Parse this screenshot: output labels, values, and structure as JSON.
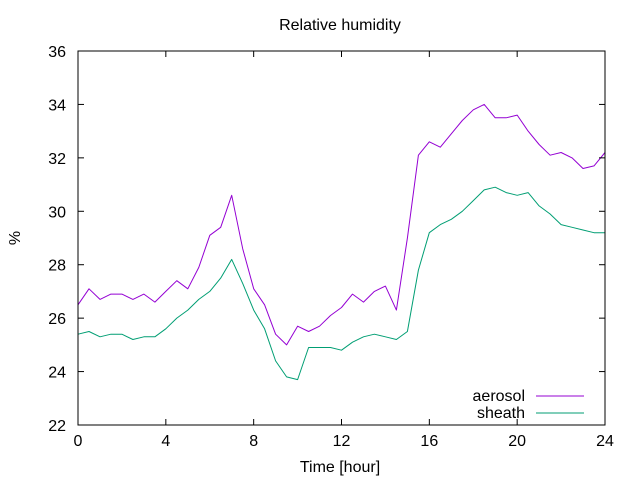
{
  "chart_data": {
    "type": "line",
    "title": "Relative humidity",
    "xlabel": "Time [hour]",
    "ylabel": "%",
    "xlim": [
      0,
      24
    ],
    "ylim": [
      22,
      36
    ],
    "x_ticks": [
      0,
      4,
      8,
      12,
      16,
      20,
      24
    ],
    "y_ticks": [
      22,
      24,
      26,
      28,
      30,
      32,
      34,
      36
    ],
    "grid": false,
    "legend_position": "bottom-right",
    "series": [
      {
        "name": "aerosol",
        "color": "#9400d3",
        "x": [
          0,
          0.5,
          1,
          1.5,
          2,
          2.5,
          3,
          3.5,
          4,
          4.5,
          5,
          5.5,
          6,
          6.5,
          7,
          7.5,
          8,
          8.5,
          9,
          9.5,
          10,
          10.5,
          11,
          11.5,
          12,
          12.5,
          13,
          13.5,
          14,
          14.5,
          15,
          15.5,
          16,
          16.5,
          17,
          17.5,
          18,
          18.5,
          19,
          19.5,
          20,
          20.5,
          21,
          21.5,
          22,
          22.5,
          23,
          23.5,
          24
        ],
        "y": [
          26.5,
          27.1,
          26.7,
          26.9,
          26.9,
          26.7,
          26.9,
          26.6,
          27.0,
          27.4,
          27.1,
          27.9,
          29.1,
          29.4,
          30.6,
          28.6,
          27.1,
          26.5,
          25.4,
          25.0,
          25.7,
          25.5,
          25.7,
          26.1,
          26.4,
          26.9,
          26.6,
          27.0,
          27.2,
          26.3,
          29.0,
          32.1,
          32.6,
          32.4,
          32.9,
          33.4,
          33.8,
          34.0,
          33.5,
          33.5,
          33.6,
          33.0,
          32.5,
          32.1,
          32.2,
          32.0,
          31.6,
          31.7,
          32.2
        ]
      },
      {
        "name": "sheath",
        "color": "#009e73",
        "x": [
          0,
          0.5,
          1,
          1.5,
          2,
          2.5,
          3,
          3.5,
          4,
          4.5,
          5,
          5.5,
          6,
          6.5,
          7,
          7.5,
          8,
          8.5,
          9,
          9.5,
          10,
          10.5,
          11,
          11.5,
          12,
          12.5,
          13,
          13.5,
          14,
          14.5,
          15,
          15.5,
          16,
          16.5,
          17,
          17.5,
          18,
          18.5,
          19,
          19.5,
          20,
          20.5,
          21,
          21.5,
          22,
          22.5,
          23,
          23.5,
          24
        ],
        "y": [
          25.4,
          25.5,
          25.3,
          25.4,
          25.4,
          25.2,
          25.3,
          25.3,
          25.6,
          26.0,
          26.3,
          26.7,
          27.0,
          27.5,
          28.2,
          27.3,
          26.3,
          25.6,
          24.4,
          23.8,
          23.7,
          24.9,
          24.9,
          24.9,
          24.8,
          25.1,
          25.3,
          25.4,
          25.3,
          25.2,
          25.5,
          27.8,
          29.2,
          29.5,
          29.7,
          30.0,
          30.4,
          30.8,
          30.9,
          30.7,
          30.6,
          30.7,
          30.2,
          29.9,
          29.5,
          29.4,
          29.3,
          29.2,
          29.2
        ]
      }
    ]
  }
}
